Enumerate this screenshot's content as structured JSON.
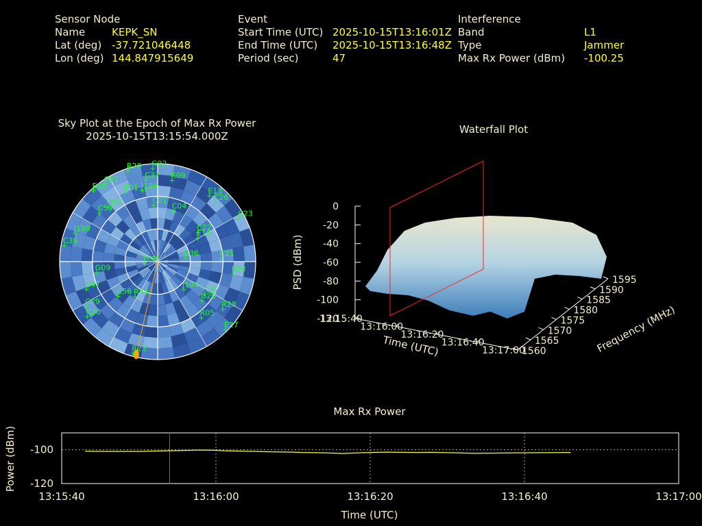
{
  "header": {
    "sensor": {
      "heading": "Sensor Node",
      "name_label": "Name",
      "name_value": "KEPK_SN",
      "lat_label": "Lat (deg)",
      "lat_value": "-37.721046448",
      "lon_label": "Lon (deg)",
      "lon_value": "144.847915649"
    },
    "event": {
      "heading": "Event",
      "start_label": "Start Time (UTC)",
      "start_value": "2025-10-15T13:16:01Z",
      "end_label": "End Time (UTC)",
      "end_value": "2025-10-15T13:16:48Z",
      "period_label": "Period (sec)",
      "period_value": "47"
    },
    "interference": {
      "heading": "Interference",
      "band_label": "Band",
      "band_value": "L1",
      "type_label": "Type",
      "type_value": "Jammer",
      "power_label": "Max Rx Power (dBm)",
      "power_value": "-100.25"
    }
  },
  "colors": {
    "label": "#f5f0c8",
    "value": "#ffff33",
    "sat": "#22ff22",
    "track": "#ffa500",
    "marker": "#ff2222",
    "sky_fill": "#3b68b5"
  },
  "chart_data": [
    {
      "type": "sky",
      "title": "Sky Plot at the Epoch of Max Rx Power",
      "subtitle": "2025-10-15T13:15:54.000Z",
      "rings_deg": [
        0,
        30,
        60,
        90
      ],
      "satellites": [
        {
          "id": "R20",
          "az": 342,
          "el": 2
        },
        {
          "id": "G02",
          "az": 357,
          "el": 4
        },
        {
          "id": "R09",
          "az": 10,
          "el": 14
        },
        {
          "id": "C27",
          "az": 326,
          "el": 4
        },
        {
          "id": "E08",
          "az": 318,
          "el": 2
        },
        {
          "id": "C37",
          "az": 352,
          "el": 14
        },
        {
          "id": "J196",
          "az": 348,
          "el": 23
        },
        {
          "id": "E01",
          "az": 335,
          "el": 20
        },
        {
          "id": "C09",
          "az": 318,
          "el": 22
        },
        {
          "id": "C59",
          "az": 310,
          "el": 20
        },
        {
          "id": "C01",
          "az": 356,
          "el": 38
        },
        {
          "id": "C04",
          "az": 17,
          "el": 41
        },
        {
          "id": "E13",
          "az": 38,
          "el": 13
        },
        {
          "id": "C26",
          "az": 44,
          "el": 14
        },
        {
          "id": "C23",
          "az": 62,
          "el": 5
        },
        {
          "id": "C22",
          "az": 54,
          "el": 44
        },
        {
          "id": "E16",
          "az": 59,
          "el": 47
        },
        {
          "id": "J199",
          "az": 289,
          "el": 10
        },
        {
          "id": "C39",
          "az": 280,
          "el": 3
        },
        {
          "id": "E36",
          "az": 82,
          "el": 64
        },
        {
          "id": "C21",
          "az": 87,
          "el": 32
        },
        {
          "id": "E03",
          "az": 99,
          "el": 20
        },
        {
          "id": "J195",
          "az": 261,
          "el": 78
        },
        {
          "id": "G09",
          "az": 260,
          "el": 33
        },
        {
          "id": "C47",
          "az": 249,
          "el": 20
        },
        {
          "id": "J194",
          "az": 137,
          "el": 55
        },
        {
          "id": "C25",
          "az": 125,
          "el": 38
        },
        {
          "id": "G26",
          "az": 131,
          "el": 36
        },
        {
          "id": "C56",
          "az": 229,
          "el": 42
        },
        {
          "id": "R44",
          "az": 213,
          "el": 52
        },
        {
          "id": "C29",
          "az": 238,
          "el": 13
        },
        {
          "id": "R28",
          "az": 126,
          "el": 16
        },
        {
          "id": "R05",
          "az": 142,
          "el": 25
        },
        {
          "id": "E27",
          "az": 135,
          "el": 2
        },
        {
          "id": "C30",
          "az": 232,
          "el": 8
        },
        {
          "id": "R23",
          "az": 195,
          "el": 3
        }
      ],
      "jammer_bearing_az": 193
    },
    {
      "type": "surface",
      "title": "Waterfall Plot",
      "xlabel": "Time (UTC)",
      "ylabel": "Frequency (MHz)",
      "zlabel": "PSD (dBm)",
      "x_ticks": [
        "13:15:40",
        "13:16:00",
        "13:16:20",
        "13:16:40",
        "13:17:00"
      ],
      "y_ticks": [
        "1560",
        "1565",
        "1570",
        "1575",
        "1580",
        "1585",
        "1590",
        "1595"
      ],
      "z_ticks": [
        "0",
        "-20",
        "-40",
        "-60",
        "-80",
        "-100",
        "-120"
      ],
      "zlim": [
        -120,
        0
      ],
      "marker_time": "13:15:54"
    },
    {
      "type": "line",
      "title": "Max Rx Power",
      "xlabel": "Time (UTC)",
      "ylabel": "Power (dBm)",
      "x_ticks": [
        "13:15:40",
        "13:16:00",
        "13:16:20",
        "13:16:40",
        "13:17:00"
      ],
      "y_ticks": [
        "-100",
        "-120"
      ],
      "ylim": [
        -120,
        -90
      ],
      "marker_time_s": 14,
      "series": [
        {
          "x": [
            3,
            6,
            10,
            14,
            16,
            18,
            20,
            21,
            24,
            27,
            30,
            31,
            34,
            36.5,
            38,
            40,
            42,
            44,
            46,
            48,
            50,
            52,
            53.5,
            59.5,
            66
          ],
          "y": [
            -100.9,
            -101.0,
            -101.0,
            -100.6,
            -100.4,
            -100.2,
            -100.3,
            -100.6,
            -100.9,
            -101.2,
            -101.4,
            -101.6,
            -101.8,
            -102.2,
            -101.9,
            -101.6,
            -101.4,
            -101.5,
            -101.6,
            -101.5,
            -101.7,
            -101.9,
            -102.1,
            -101.8,
            -101.6
          ]
        }
      ]
    }
  ]
}
